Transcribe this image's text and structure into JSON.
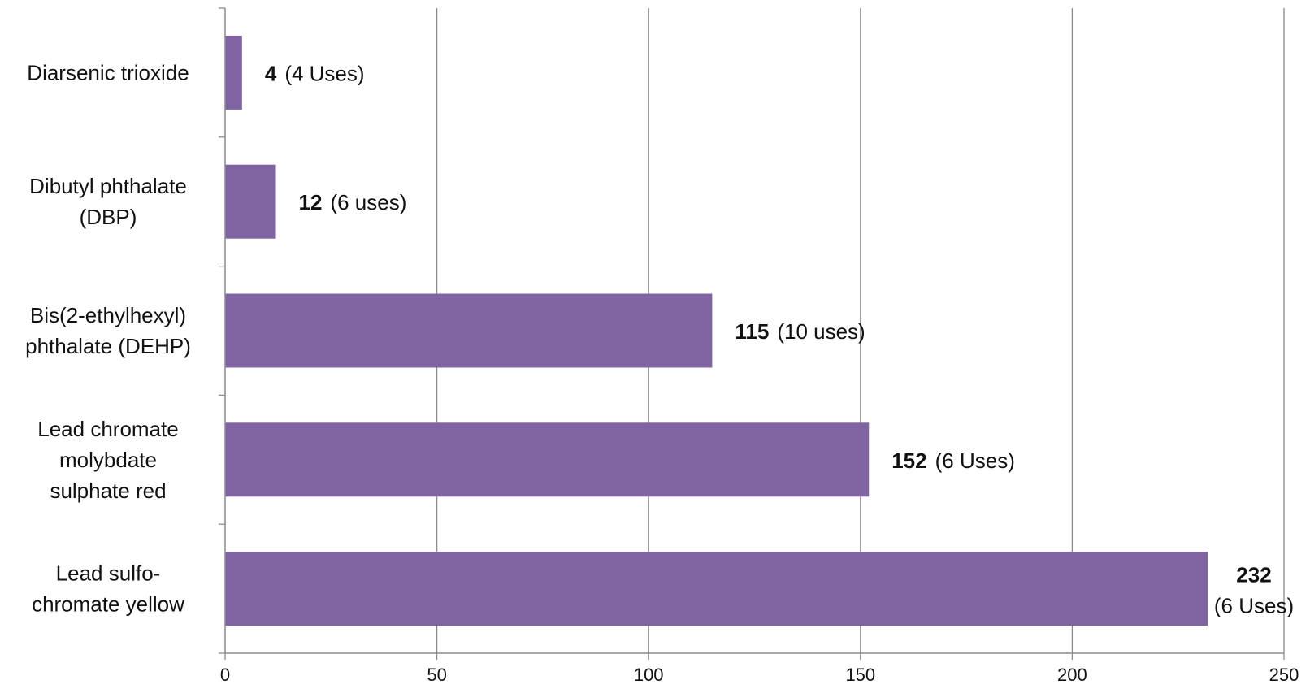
{
  "chart_data": {
    "type": "bar",
    "orientation": "horizontal",
    "title": "",
    "xlabel": "",
    "ylabel": "",
    "xlim": [
      0,
      250
    ],
    "x_ticks": [
      0,
      50,
      100,
      150,
      200,
      250
    ],
    "grid": "vertical",
    "legend": "none",
    "bar_color": "#8064a2",
    "categories": [
      [
        "Diarsenic trioxide"
      ],
      [
        "Dibutyl phthalate",
        "(DBP)"
      ],
      [
        "Bis(2-ethylhexyl)",
        "phthalate (DEHP)"
      ],
      [
        "Lead chromate",
        "molybdate",
        "sulphate red"
      ],
      [
        "Lead sulfo-",
        "chromate yellow"
      ]
    ],
    "values": [
      4,
      12,
      115,
      152,
      232
    ],
    "data_labels": [
      {
        "value": "4",
        "note": "(4 Uses)"
      },
      {
        "value": "12",
        "note": "(6 uses)"
      },
      {
        "value": "115",
        "note": "(10 uses)"
      },
      {
        "value": "152",
        "note": "(6 Uses)"
      },
      {
        "value": "232",
        "note": "(6 Uses)"
      }
    ]
  }
}
